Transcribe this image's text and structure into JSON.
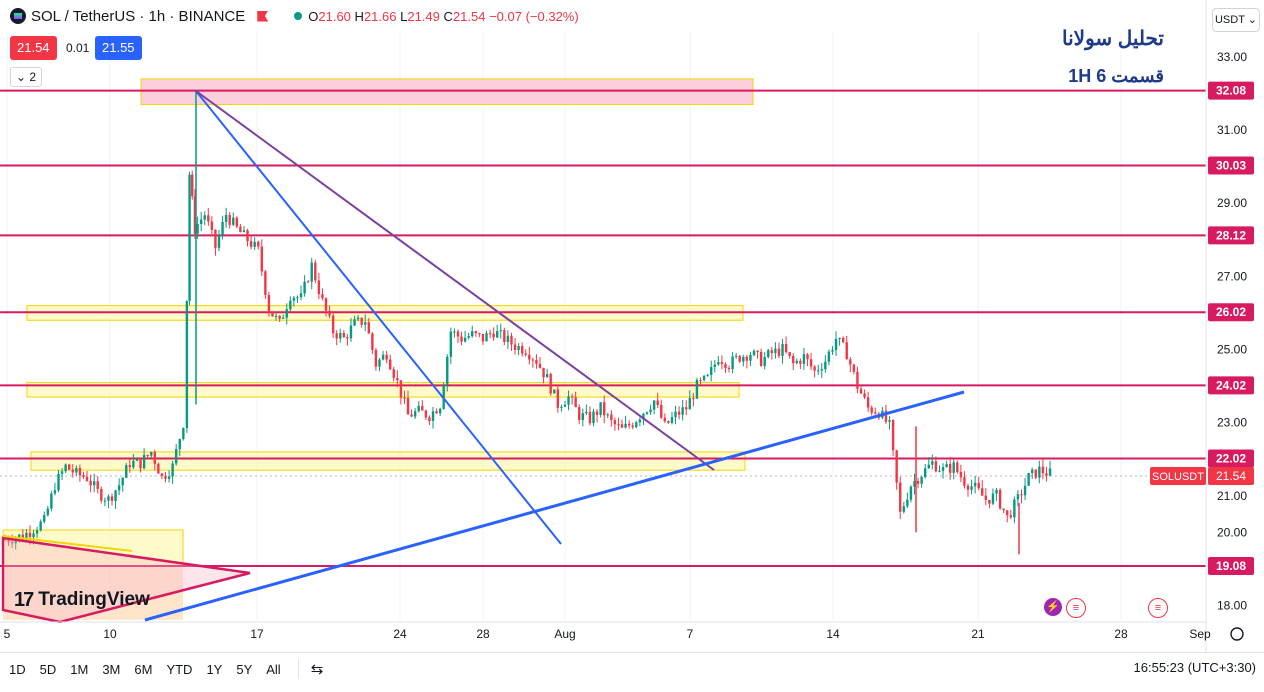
{
  "header": {
    "title": "SOL / TetherUS · 1h · BINANCE",
    "ohlc_open_label": "O",
    "ohlc_open": "21.60",
    "ohlc_high_label": "H",
    "ohlc_high": "21.66",
    "ohlc_low_label": "L",
    "ohlc_low": "21.49",
    "ohlc_close_label": "C",
    "ohlc_close": "21.54",
    "ohlc_change": "−0.07 (−0.32%)"
  },
  "trade": {
    "sell": "21.54",
    "spread": "0.01",
    "buy": "21.55"
  },
  "indicators_toggle": "2",
  "currency": "USDT ⌄",
  "annotation": {
    "line1": "تحلیل سولانا",
    "line2": "قسمت 6    1H"
  },
  "price_axis": {
    "ticks": [
      "33.00",
      "31.00",
      "29.00",
      "27.00",
      "25.00",
      "23.00",
      "21.00",
      "20.00",
      "18.00"
    ],
    "levels": [
      "32.08",
      "30.03",
      "28.12",
      "26.02",
      "24.02",
      "22.02",
      "19.08"
    ],
    "current": "21.54",
    "current_label": "SOLUSDT"
  },
  "time_axis": [
    "5",
    "10",
    "17",
    "24",
    "28",
    "Aug",
    "7",
    "14",
    "21",
    "28",
    "Sep"
  ],
  "branding": "TradingView",
  "bottom_bar": {
    "ranges": [
      "1D",
      "5D",
      "1M",
      "3M",
      "6M",
      "YTD",
      "1Y",
      "5Y",
      "All"
    ],
    "clock": "16:55:23 (UTC+3:30)"
  },
  "colors": {
    "up": "#089981",
    "down": "#f23645",
    "level": "#d81b60",
    "zone": "#fff59d",
    "trend_blue": "#2962ff",
    "trend_purple": "#7b3fa0",
    "accent": "#2962ff"
  },
  "chart_data": {
    "type": "candlestick",
    "symbol": "SOLUSDT",
    "timeframe": "1h",
    "horizontal_levels": [
      32.08,
      30.03,
      28.12,
      26.02,
      24.02,
      22.02,
      19.08
    ],
    "zones": [
      [
        31.7,
        32.4
      ],
      [
        25.8,
        26.2
      ],
      [
        23.7,
        24.1
      ],
      [
        21.7,
        22.2
      ]
    ],
    "path": [
      [
        0,
        19.8
      ],
      [
        4,
        19.9
      ],
      [
        8,
        20.3
      ],
      [
        10,
        21.3
      ],
      [
        12,
        21.8
      ],
      [
        14,
        21.6
      ],
      [
        16,
        21.5
      ],
      [
        18,
        21.1
      ],
      [
        20,
        20.9
      ],
      [
        22,
        21.3
      ],
      [
        24,
        21.9
      ],
      [
        26,
        21.9
      ],
      [
        28,
        22.2
      ],
      [
        30,
        21.5
      ],
      [
        32,
        21.8
      ],
      [
        34,
        23.0
      ],
      [
        35,
        29.8
      ],
      [
        36,
        28.3
      ],
      [
        38,
        28.7
      ],
      [
        40,
        27.8
      ],
      [
        42,
        28.7
      ],
      [
        44,
        28.3
      ],
      [
        46,
        28.0
      ],
      [
        48,
        27.7
      ],
      [
        50,
        26.1
      ],
      [
        52,
        25.7
      ],
      [
        54,
        26.5
      ],
      [
        56,
        26.4
      ],
      [
        58,
        27.3
      ],
      [
        60,
        26.3
      ],
      [
        62,
        25.5
      ],
      [
        64,
        25.3
      ],
      [
        66,
        25.7
      ],
      [
        68,
        25.8
      ],
      [
        70,
        24.6
      ],
      [
        72,
        24.9
      ],
      [
        74,
        24.1
      ],
      [
        76,
        23.2
      ],
      [
        78,
        23.3
      ],
      [
        80,
        23.2
      ],
      [
        82,
        23.5
      ],
      [
        84,
        25.5
      ],
      [
        86,
        25.3
      ],
      [
        88,
        25.4
      ],
      [
        90,
        25.3
      ],
      [
        92,
        25.5
      ],
      [
        94,
        25.3
      ],
      [
        96,
        25.1
      ],
      [
        98,
        25.0
      ],
      [
        100,
        24.7
      ],
      [
        102,
        24.2
      ],
      [
        104,
        23.5
      ],
      [
        106,
        23.7
      ],
      [
        108,
        23.2
      ],
      [
        110,
        23.1
      ],
      [
        112,
        23.4
      ],
      [
        114,
        23.0
      ],
      [
        116,
        22.8
      ],
      [
        118,
        23.0
      ],
      [
        120,
        23.3
      ],
      [
        122,
        23.6
      ],
      [
        124,
        22.9
      ],
      [
        126,
        23.2
      ],
      [
        128,
        23.4
      ],
      [
        130,
        24.0
      ],
      [
        132,
        24.2
      ],
      [
        134,
        24.8
      ],
      [
        136,
        24.6
      ],
      [
        138,
        24.8
      ],
      [
        140,
        24.9
      ],
      [
        142,
        24.7
      ],
      [
        144,
        24.9
      ],
      [
        146,
        25.0
      ],
      [
        148,
        24.6
      ],
      [
        150,
        24.8
      ],
      [
        152,
        24.4
      ],
      [
        154,
        24.7
      ],
      [
        156,
        25.3
      ],
      [
        158,
        24.9
      ],
      [
        160,
        24.0
      ],
      [
        162,
        23.4
      ],
      [
        164,
        23.3
      ],
      [
        166,
        22.9
      ],
      [
        168,
        20.5
      ],
      [
        170,
        21.3
      ],
      [
        172,
        21.6
      ],
      [
        174,
        21.9
      ],
      [
        176,
        21.7
      ],
      [
        178,
        21.8
      ],
      [
        180,
        21.4
      ],
      [
        182,
        21.2
      ],
      [
        184,
        20.9
      ],
      [
        186,
        21.0
      ],
      [
        188,
        20.4
      ],
      [
        190,
        20.9
      ],
      [
        192,
        21.5
      ],
      [
        194,
        21.7
      ],
      [
        196,
        21.6
      ]
    ]
  }
}
